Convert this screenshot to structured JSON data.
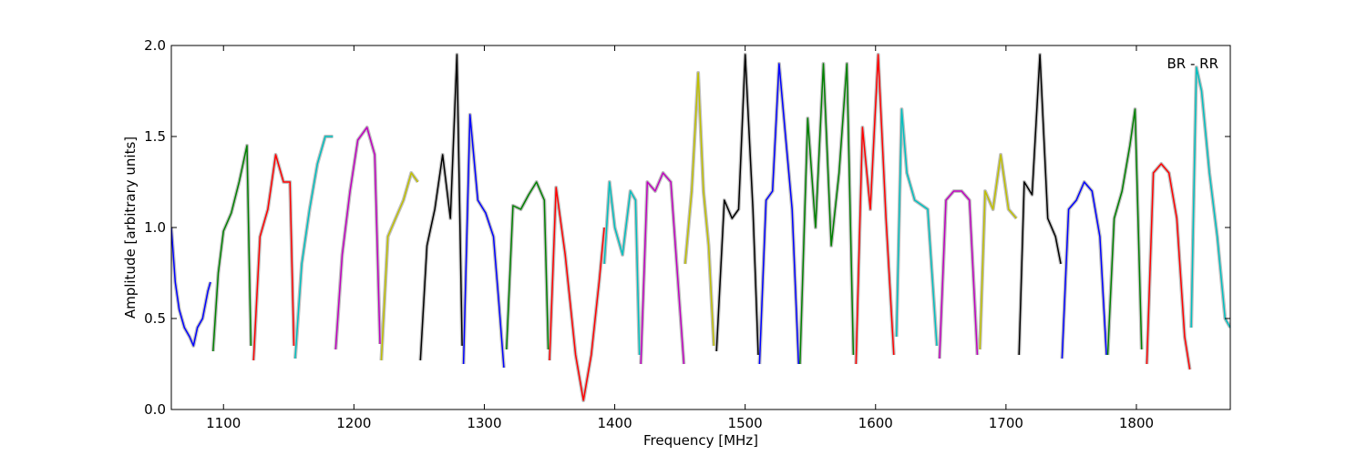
{
  "chart_data": {
    "type": "line",
    "title": "",
    "xlabel": "Frequency [MHz]",
    "ylabel": "Amplitude [arbitrary units]",
    "annotation": "BR - RR",
    "xlim": [
      1060,
      1872
    ],
    "ylim": [
      0.0,
      2.0
    ],
    "x_ticks": [
      1100,
      1200,
      1300,
      1400,
      1500,
      1600,
      1700,
      1800
    ],
    "x_tick_labels": [
      "1100",
      "1200",
      "1300",
      "1400",
      "1500",
      "1600",
      "1700",
      "1800"
    ],
    "y_ticks": [
      0.0,
      0.5,
      1.0,
      1.5,
      2.0
    ],
    "y_tick_labels": [
      "0.0",
      "0.5",
      "1.0",
      "1.5",
      "2.0"
    ],
    "grid": false,
    "legend": "none",
    "background_color": "#c0c0c0",
    "series": [
      {
        "color": "#0000ff",
        "x": [
          1060,
          1063,
          1066,
          1070,
          1074,
          1077,
          1080,
          1084,
          1088,
          1090
        ],
        "y": [
          1.0,
          0.7,
          0.55,
          0.45,
          0.4,
          0.35,
          0.45,
          0.5,
          0.65,
          0.7
        ]
      },
      {
        "color": "#008000",
        "x": [
          1092,
          1096,
          1100,
          1106,
          1112,
          1118,
          1121
        ],
        "y": [
          0.32,
          0.75,
          0.98,
          1.08,
          1.25,
          1.45,
          0.35
        ]
      },
      {
        "color": "#ff0000",
        "x": [
          1123,
          1128,
          1134,
          1140,
          1146,
          1151,
          1154
        ],
        "y": [
          0.27,
          0.95,
          1.1,
          1.4,
          1.25,
          1.25,
          0.35
        ]
      },
      {
        "color": "#00bfbf",
        "x": [
          1155,
          1160,
          1166,
          1172,
          1178,
          1184
        ],
        "y": [
          0.28,
          0.8,
          1.1,
          1.35,
          1.5,
          1.5
        ]
      },
      {
        "color": "#bf00bf",
        "x": [
          1186,
          1191,
          1197,
          1203,
          1210,
          1216,
          1220
        ],
        "y": [
          0.33,
          0.85,
          1.2,
          1.48,
          1.55,
          1.4,
          0.36
        ]
      },
      {
        "color": "#bfbf00",
        "x": [
          1221,
          1226,
          1232,
          1238,
          1244,
          1249
        ],
        "y": [
          0.27,
          0.95,
          1.05,
          1.15,
          1.3,
          1.25
        ]
      },
      {
        "color": "#000000",
        "x": [
          1251,
          1256,
          1262,
          1268,
          1274,
          1279,
          1283
        ],
        "y": [
          0.27,
          0.9,
          1.1,
          1.4,
          1.05,
          1.95,
          0.35
        ]
      },
      {
        "color": "#0000ff",
        "x": [
          1284,
          1289,
          1295,
          1301,
          1307,
          1311,
          1315
        ],
        "y": [
          0.25,
          1.62,
          1.15,
          1.08,
          0.95,
          0.6,
          0.23
        ]
      },
      {
        "color": "#008000",
        "x": [
          1317,
          1322,
          1328,
          1334,
          1340,
          1346,
          1349
        ],
        "y": [
          0.33,
          1.12,
          1.1,
          1.18,
          1.25,
          1.15,
          0.33
        ]
      },
      {
        "color": "#ff0000",
        "x": [
          1350,
          1355,
          1362,
          1370,
          1376,
          1382,
          1388,
          1392
        ],
        "y": [
          0.27,
          1.22,
          0.85,
          0.3,
          0.05,
          0.3,
          0.7,
          1.0
        ]
      },
      {
        "color": "#00bfbf",
        "x": [
          1392,
          1396,
          1400,
          1406,
          1412,
          1416,
          1419
        ],
        "y": [
          0.8,
          1.25,
          1.0,
          0.85,
          1.2,
          1.15,
          0.3
        ]
      },
      {
        "color": "#bf00bf",
        "x": [
          1420,
          1425,
          1431,
          1437,
          1443,
          1449,
          1453
        ],
        "y": [
          0.25,
          1.25,
          1.2,
          1.3,
          1.25,
          0.65,
          0.25
        ]
      },
      {
        "color": "#bfbf00",
        "x": [
          1454,
          1459,
          1464,
          1468,
          1472,
          1476
        ],
        "y": [
          0.8,
          1.2,
          1.85,
          1.2,
          0.9,
          0.35
        ]
      },
      {
        "color": "#000000",
        "x": [
          1478,
          1484,
          1490,
          1495,
          1500,
          1506,
          1510
        ],
        "y": [
          0.32,
          1.15,
          1.05,
          1.1,
          1.95,
          1.1,
          0.3
        ]
      },
      {
        "color": "#0000ff",
        "x": [
          1511,
          1516,
          1521,
          1526,
          1531,
          1536,
          1541
        ],
        "y": [
          0.25,
          1.15,
          1.2,
          1.9,
          1.5,
          1.1,
          0.25
        ]
      },
      {
        "color": "#008000",
        "x": [
          1542,
          1548,
          1554,
          1560,
          1566,
          1572,
          1578,
          1583
        ],
        "y": [
          0.25,
          1.6,
          1.0,
          1.9,
          0.9,
          1.3,
          1.9,
          0.3
        ]
      },
      {
        "color": "#ff0000",
        "x": [
          1585,
          1590,
          1596,
          1602,
          1608,
          1614
        ],
        "y": [
          0.25,
          1.55,
          1.1,
          1.95,
          1.05,
          0.3
        ]
      },
      {
        "color": "#00bfbf",
        "x": [
          1616,
          1620,
          1624,
          1630,
          1640,
          1647
        ],
        "y": [
          0.4,
          1.65,
          1.3,
          1.15,
          1.1,
          0.35
        ]
      },
      {
        "color": "#bf00bf",
        "x": [
          1649,
          1654,
          1660,
          1666,
          1672,
          1678
        ],
        "y": [
          0.28,
          1.15,
          1.2,
          1.2,
          1.15,
          0.3
        ]
      },
      {
        "color": "#bfbf00",
        "x": [
          1680,
          1684,
          1690,
          1696,
          1702,
          1708
        ],
        "y": [
          0.33,
          1.2,
          1.1,
          1.4,
          1.1,
          1.05
        ]
      },
      {
        "color": "#000000",
        "x": [
          1710,
          1714,
          1720,
          1726,
          1732,
          1738,
          1742
        ],
        "y": [
          0.3,
          1.25,
          1.18,
          1.95,
          1.05,
          0.95,
          0.8
        ]
      },
      {
        "color": "#0000ff",
        "x": [
          1743,
          1748,
          1754,
          1760,
          1766,
          1772,
          1777
        ],
        "y": [
          0.28,
          1.1,
          1.15,
          1.25,
          1.2,
          0.95,
          0.3
        ]
      },
      {
        "color": "#008000",
        "x": [
          1778,
          1783,
          1789,
          1795,
          1799,
          1804
        ],
        "y": [
          0.3,
          1.05,
          1.2,
          1.45,
          1.65,
          0.33
        ]
      },
      {
        "color": "#ff0000",
        "x": [
          1808,
          1813,
          1819,
          1825,
          1831,
          1837,
          1841
        ],
        "y": [
          0.25,
          1.3,
          1.35,
          1.3,
          1.05,
          0.4,
          0.22
        ]
      },
      {
        "color": "#00bfbf",
        "x": [
          1842,
          1846,
          1850,
          1856,
          1862,
          1868,
          1872
        ],
        "y": [
          0.45,
          1.88,
          1.75,
          1.3,
          0.95,
          0.5,
          0.45
        ]
      }
    ]
  }
}
